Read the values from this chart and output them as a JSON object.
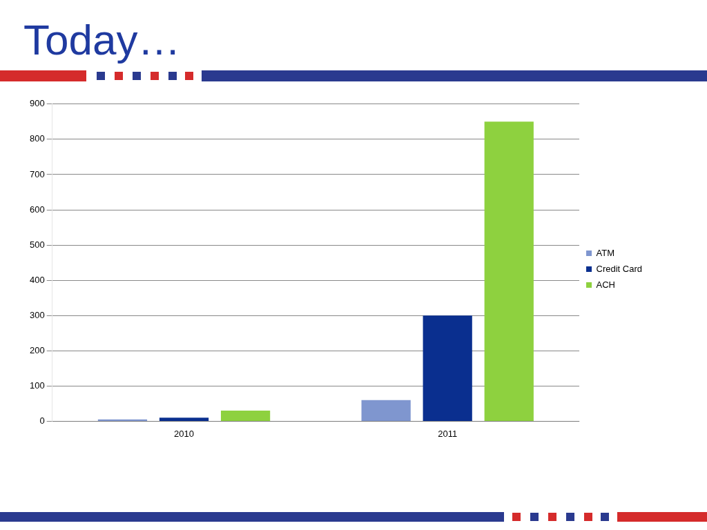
{
  "chart_data": {
    "type": "bar",
    "title": "Today…",
    "categories": [
      "2010",
      "2011"
    ],
    "series": [
      {
        "name": "ATM",
        "color": "#7f96cf",
        "values": [
          5,
          60
        ]
      },
      {
        "name": "Credit Card",
        "color": "#0a2f8f",
        "values": [
          10,
          300
        ]
      },
      {
        "name": "ACH",
        "color": "#8ed13f",
        "values": [
          30,
          850
        ]
      }
    ],
    "ylim": [
      0,
      900
    ],
    "yticks": [
      0,
      100,
      200,
      300,
      400,
      500,
      600,
      700,
      800,
      900
    ],
    "grid": "y",
    "legend": "right"
  }
}
